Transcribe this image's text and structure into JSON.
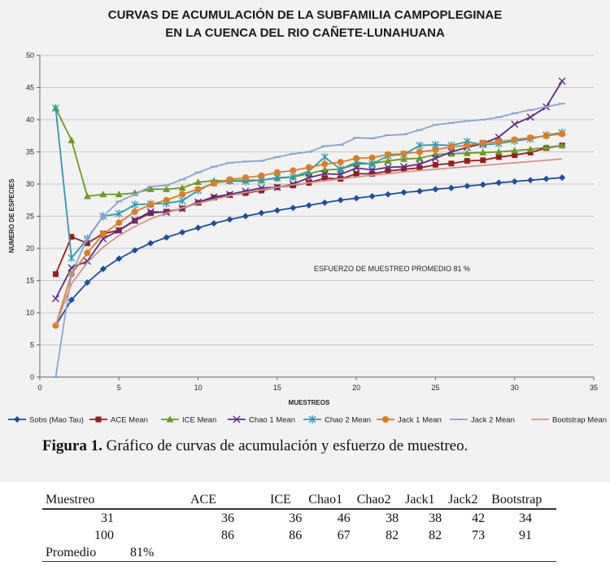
{
  "chart_data": {
    "type": "line",
    "title_lines": [
      "CURVAS DE ACUMULACIÓN DE LA SUBFAMILIA CAMPOPLEGINAE",
      "EN LA CUENCA DEL RIO CAÑETE-LUNAHUANA"
    ],
    "xlabel": "MUESTREOS",
    "ylabel": "NUMERO DE ESPECIES",
    "xlim": [
      0,
      35
    ],
    "ylim": [
      0,
      50
    ],
    "xticks": [
      "0",
      "5",
      "10",
      "15",
      "20",
      "25",
      "30",
      "35"
    ],
    "yticks": [
      "0",
      "5",
      "10",
      "15",
      "20",
      "25",
      "30",
      "35",
      "40",
      "45",
      "50"
    ],
    "annotation": "ESFUERZO DE MUESTREO PROMEDIO 81 %",
    "legend_position": "bottom",
    "series": [
      {
        "name": "Sobs (Mao Tau)",
        "color": "#1f4e9a",
        "marker": "diamond",
        "values": [
          8,
          12,
          14.7,
          16.8,
          18.4,
          19.7,
          20.8,
          21.7,
          22.5,
          23.2,
          23.9,
          24.5,
          25,
          25.5,
          25.9,
          26.3,
          26.7,
          27.1,
          27.5,
          27.8,
          28.1,
          28.4,
          28.7,
          28.9,
          29.2,
          29.4,
          29.7,
          29.9,
          30.2,
          30.4,
          30.6,
          30.8,
          31
        ]
      },
      {
        "name": "ACE Mean",
        "color": "#9b1c1c",
        "marker": "square",
        "values": [
          16,
          21.8,
          20.8,
          22.3,
          22.8,
          24.3,
          25.5,
          25.7,
          26.2,
          27.1,
          27.9,
          28.3,
          28.6,
          29,
          29.5,
          29.8,
          30.2,
          30.9,
          30.8,
          31.6,
          31.6,
          32,
          32.3,
          32.5,
          33,
          33.2,
          33.6,
          33.7,
          34.2,
          34.5,
          34.9,
          35.6,
          36
        ]
      },
      {
        "name": "ICE Mean",
        "color": "#6a9a1f",
        "marker": "triangle",
        "values": [
          41.8,
          36.8,
          28.1,
          28.4,
          28.4,
          28.6,
          29.2,
          29.2,
          29.4,
          30.3,
          30.5,
          30.5,
          30.6,
          30.6,
          30.9,
          31.1,
          31.6,
          32.2,
          32.3,
          33.1,
          33.2,
          33.6,
          33.9,
          34,
          34.6,
          34.7,
          34.8,
          34.9,
          35,
          35.2,
          35.4,
          35.7,
          36
        ]
      },
      {
        "name": "Chao 1 Mean",
        "color": "#5b2d84",
        "marker": "x",
        "values": [
          12.2,
          17,
          18,
          21.5,
          22.8,
          24.4,
          25.7,
          25.6,
          26.2,
          27.2,
          28,
          28.4,
          28.9,
          29.4,
          29.5,
          30,
          31,
          31.6,
          31.5,
          32.5,
          32.2,
          32.6,
          32.7,
          33.1,
          34,
          35,
          35.7,
          36.3,
          37.3,
          39.3,
          40.4,
          42,
          46
        ]
      },
      {
        "name": "Chao 2 Mean",
        "color": "#2a9bb5",
        "marker": "star",
        "values": [
          41.8,
          18.5,
          21.5,
          25,
          25.4,
          26.8,
          26.9,
          27,
          27.4,
          29,
          30.2,
          30.5,
          30.4,
          30.6,
          31,
          31.1,
          32,
          34.2,
          32.3,
          33.4,
          33.1,
          34.4,
          34.6,
          36,
          36.1,
          36,
          36.6,
          36.1,
          36.3,
          36.7,
          37,
          37.6,
          38
        ]
      },
      {
        "name": "Jack 1 Mean",
        "color": "#e07b22",
        "marker": "circle",
        "values": [
          8,
          16,
          19.3,
          22.2,
          24,
          25.7,
          26.8,
          27.5,
          28.4,
          29.2,
          30.1,
          30.7,
          31,
          31.3,
          31.8,
          32.1,
          32.6,
          33.1,
          33.4,
          34,
          34.1,
          34.6,
          34.7,
          35,
          35.3,
          35.8,
          36,
          36.4,
          36.6,
          36.9,
          37.2,
          37.5,
          37.8
        ]
      },
      {
        "name": "Jack 2 Mean",
        "color": "#8aa4d4",
        "marker": "dash",
        "values": [
          0,
          16,
          21.6,
          25,
          27.3,
          28.4,
          29.6,
          29.8,
          30.7,
          31.8,
          32.7,
          33.3,
          33.5,
          33.6,
          34.2,
          34.7,
          35,
          35.9,
          36.1,
          37.2,
          37.1,
          37.6,
          37.7,
          38.4,
          39.2,
          39.5,
          39.8,
          40,
          40.4,
          41,
          41.5,
          42,
          42.5
        ]
      },
      {
        "name": "Bootstrap Mean",
        "color": "#d8928a",
        "marker": "none",
        "values": [
          8,
          14.5,
          17.8,
          20.2,
          22,
          23.4,
          24.6,
          25.5,
          26.3,
          27,
          27.6,
          28.2,
          28.7,
          29.1,
          29.5,
          29.9,
          30.2,
          30.5,
          30.8,
          31.1,
          31.4,
          31.6,
          31.9,
          32.1,
          32.3,
          32.5,
          32.7,
          32.9,
          33.1,
          33.3,
          33.5,
          33.7,
          33.9
        ]
      }
    ]
  },
  "caption": {
    "label": "Figura 1.",
    "text": "Gráfico de curvas de acumulación y esfuerzo de muestreo."
  },
  "table": {
    "headers": [
      "Muestreo",
      "ACE",
      "ICE",
      "Chao1",
      "Chao2",
      "Jack1",
      "Jack2",
      "Bootstrap"
    ],
    "rows": [
      [
        "31",
        "36",
        "36",
        "46",
        "38",
        "38",
        "42",
        "34"
      ],
      [
        "100",
        "86",
        "86",
        "67",
        "82",
        "82",
        "73",
        "91"
      ]
    ],
    "promedio_label": "Promedio",
    "promedio_value": "81%"
  }
}
